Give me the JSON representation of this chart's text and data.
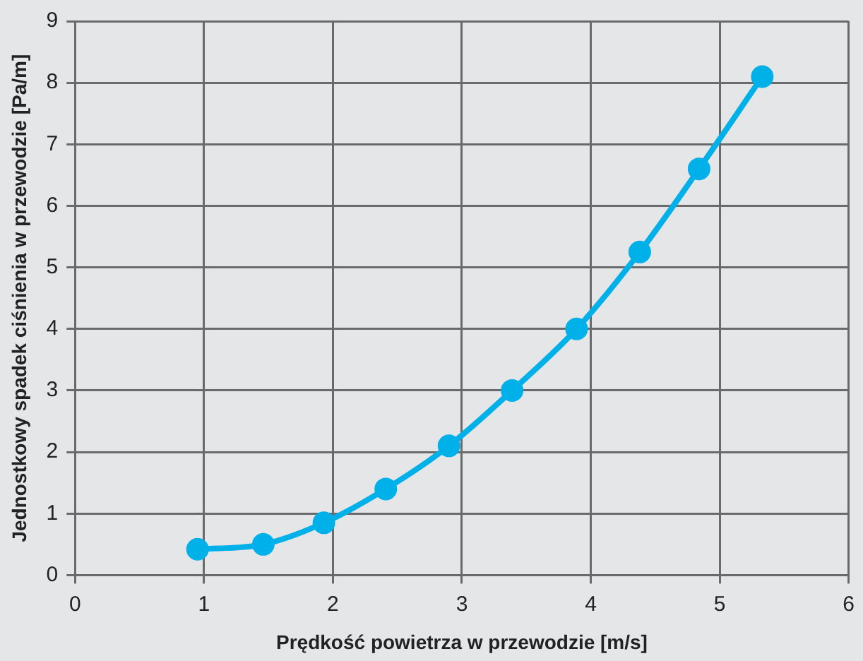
{
  "chart_data": {
    "type": "line",
    "xlabel": "Prędkość powietrza w przewodzie [m/s]",
    "ylabel": "Jednostkowy spadek ciśnienia w przewodzie [Pa/m]",
    "x": [
      0.95,
      1.46,
      1.93,
      2.41,
      2.9,
      3.39,
      3.89,
      4.38,
      4.84,
      5.33
    ],
    "series": [
      {
        "color": "#00b0e8",
        "values": [
          0.42,
          0.5,
          0.85,
          1.4,
          2.1,
          3.0,
          4.0,
          5.25,
          6.6,
          8.1
        ]
      }
    ],
    "xlim": [
      0,
      6
    ],
    "xticks": [
      0,
      1,
      2,
      3,
      4,
      5,
      6
    ],
    "ylim": [
      0,
      9
    ],
    "yticks": [
      0,
      1,
      2,
      3,
      4,
      5,
      6,
      7,
      8,
      9
    ],
    "grid": true,
    "legend": false,
    "marker": "circle",
    "line_style": "solid"
  }
}
